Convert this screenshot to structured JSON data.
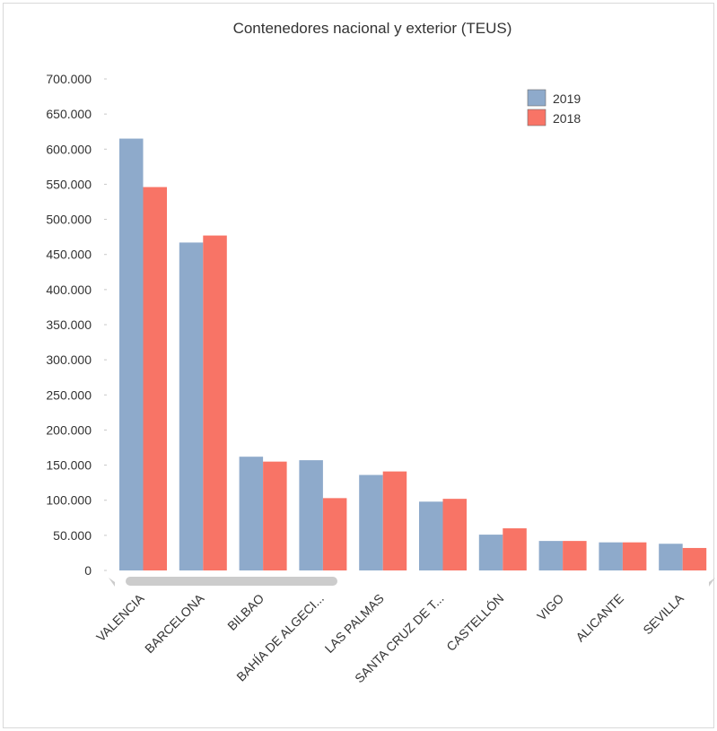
{
  "chart_data": {
    "type": "bar",
    "title": "Contenedores nacional y exterior (TEUS)",
    "xlabel": "",
    "ylabel": "",
    "categories": [
      "VALENCIA",
      "BARCELONA",
      "BILBAO",
      "BAHÍA DE ALGECI...",
      "LAS PALMAS",
      "SANTA CRUZ DE T...",
      "CASTELLÓN",
      "VIGO",
      "ALICANTE",
      "SEVILLA"
    ],
    "series": [
      {
        "name": "2019",
        "color": "#8eaacb",
        "values": [
          615000,
          467000,
          162000,
          157000,
          136000,
          98000,
          51000,
          42000,
          40000,
          38000
        ]
      },
      {
        "name": "2018",
        "color": "#f87466",
        "values": [
          546000,
          477000,
          155000,
          103000,
          141000,
          102000,
          60000,
          42000,
          40000,
          32000
        ]
      }
    ],
    "ylim": [
      0,
      700000
    ],
    "yticks": [
      "0",
      "50.000",
      "100.000",
      "150.000",
      "200.000",
      "250.000",
      "300.000",
      "350.000",
      "400.000",
      "450.000",
      "500.000",
      "550.000",
      "600.000",
      "650.000",
      "700.000"
    ],
    "legend_position": "top-right",
    "grid": false
  }
}
